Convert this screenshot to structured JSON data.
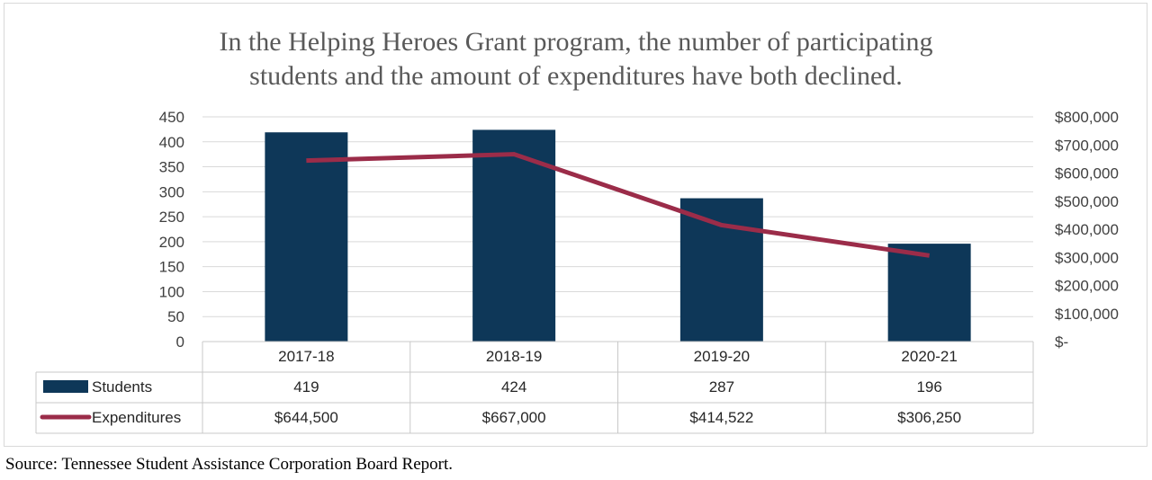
{
  "chart_data": {
    "type": "bar",
    "title_lines": [
      "In the Helping Heroes Grant program, the number of participating",
      "students and the amount of expenditures have both declined."
    ],
    "categories": [
      "2017-18",
      "2018-19",
      "2019-20",
      "2020-21"
    ],
    "series": [
      {
        "name": "Students",
        "type": "bar",
        "axis": "left",
        "values": [
          419,
          424,
          287,
          196
        ],
        "labels": [
          "419",
          "424",
          "287",
          "196"
        ],
        "color": "#0e3758"
      },
      {
        "name": "Expenditures",
        "type": "line",
        "axis": "right",
        "values": [
          644500,
          667000,
          414522,
          306250
        ],
        "labels": [
          "$644,500",
          "$667,000",
          "$414,522",
          "$306,250"
        ],
        "color": "#9b2c49"
      }
    ],
    "left_axis": {
      "min": 0,
      "max": 450,
      "step": 50,
      "tick_labels": [
        "0",
        "50",
        "100",
        "150",
        "200",
        "250",
        "300",
        "350",
        "400",
        "450"
      ]
    },
    "right_axis": {
      "min": 0,
      "max": 800000,
      "step": 100000,
      "tick_labels": [
        "$-",
        "$100,000",
        "$200,000",
        "$300,000",
        "$400,000",
        "$500,000",
        "$600,000",
        "$700,000",
        "$800,000"
      ]
    },
    "grid": true,
    "legend": "data-table"
  },
  "source": "Source: Tennessee Student Assistance Corporation Board Report."
}
